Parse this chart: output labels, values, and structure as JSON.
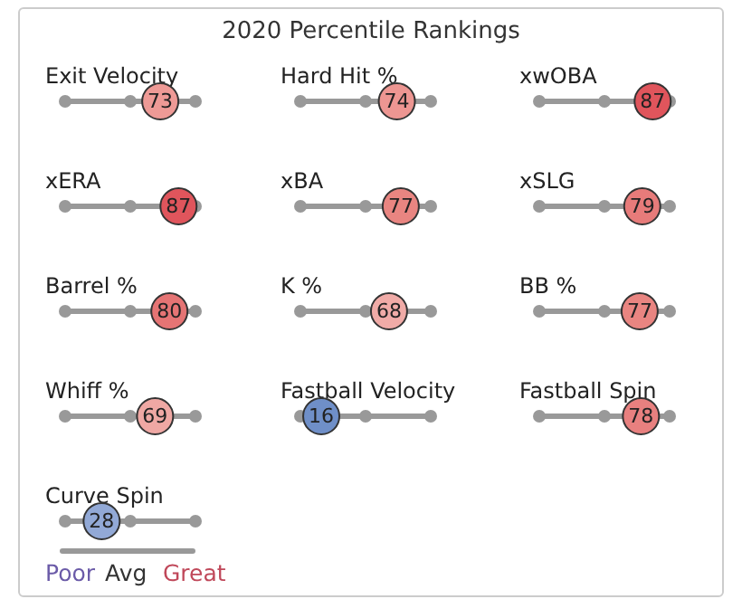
{
  "chart_data": {
    "type": "other",
    "title": "2020 Percentile Rankings",
    "categories": [
      "Exit Velocity",
      "Hard Hit %",
      "xwOBA",
      "xERA",
      "xBA",
      "xSLG",
      "Barrel %",
      "K %",
      "BB %",
      "Whiff %",
      "Fastball Velocity",
      "Fastball Spin",
      "Curve Spin"
    ],
    "values": [
      73,
      74,
      87,
      87,
      77,
      79,
      80,
      68,
      77,
      69,
      16,
      78,
      28
    ],
    "colors": [
      "#ee9a96",
      "#ed9692",
      "#e0555c",
      "#e0555c",
      "#e98581",
      "#e77b7a",
      "#e57474",
      "#f0aba7",
      "#e98581",
      "#efa8a4",
      "#6f8fc8",
      "#e8807f",
      "#92a9d6"
    ],
    "data_labels": true,
    "annotations": [
      "Poor",
      "Avg",
      "Great"
    ]
  }
}
